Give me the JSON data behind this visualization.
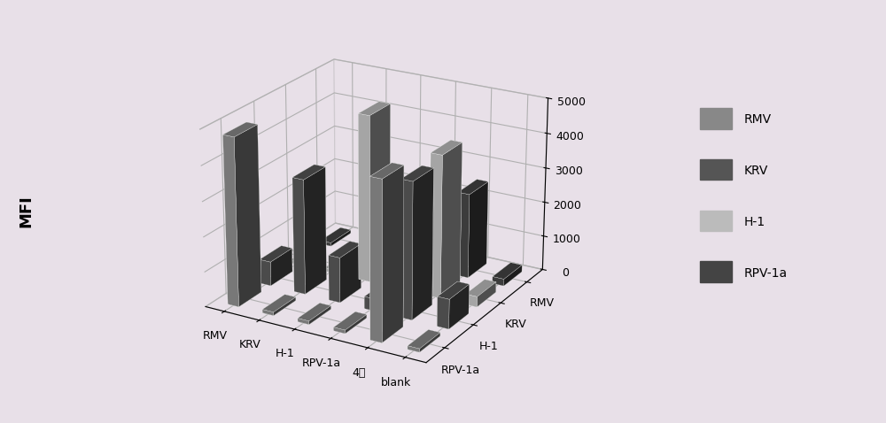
{
  "ylabel": "MFI",
  "ylim": [
    0,
    5000
  ],
  "row_labels": [
    "RMV",
    "KRV",
    "H-1",
    "RPV-1a",
    "4重",
    "blank"
  ],
  "col_labels": [
    "RMV",
    "KRV",
    "H-1",
    "RPV-1a"
  ],
  "legend_labels": [
    "RMV",
    "KRV",
    "H-1",
    "RPV-1a"
  ],
  "colors": [
    "#888888",
    "#555555",
    "#bbbbbb",
    "#444444"
  ],
  "data": [
    [
      4800,
      700,
      100,
      100
    ],
    [
      100,
      3300,
      100,
      150
    ],
    [
      100,
      1300,
      4800,
      350
    ],
    [
      100,
      350,
      100,
      100
    ],
    [
      4500,
      3900,
      4100,
      2450
    ],
    [
      100,
      850,
      300,
      200
    ]
  ],
  "background_color": "#e8e0e8",
  "figsize": [
    10,
    4.78
  ],
  "dpi": 100,
  "elev": 22,
  "azim": -60
}
